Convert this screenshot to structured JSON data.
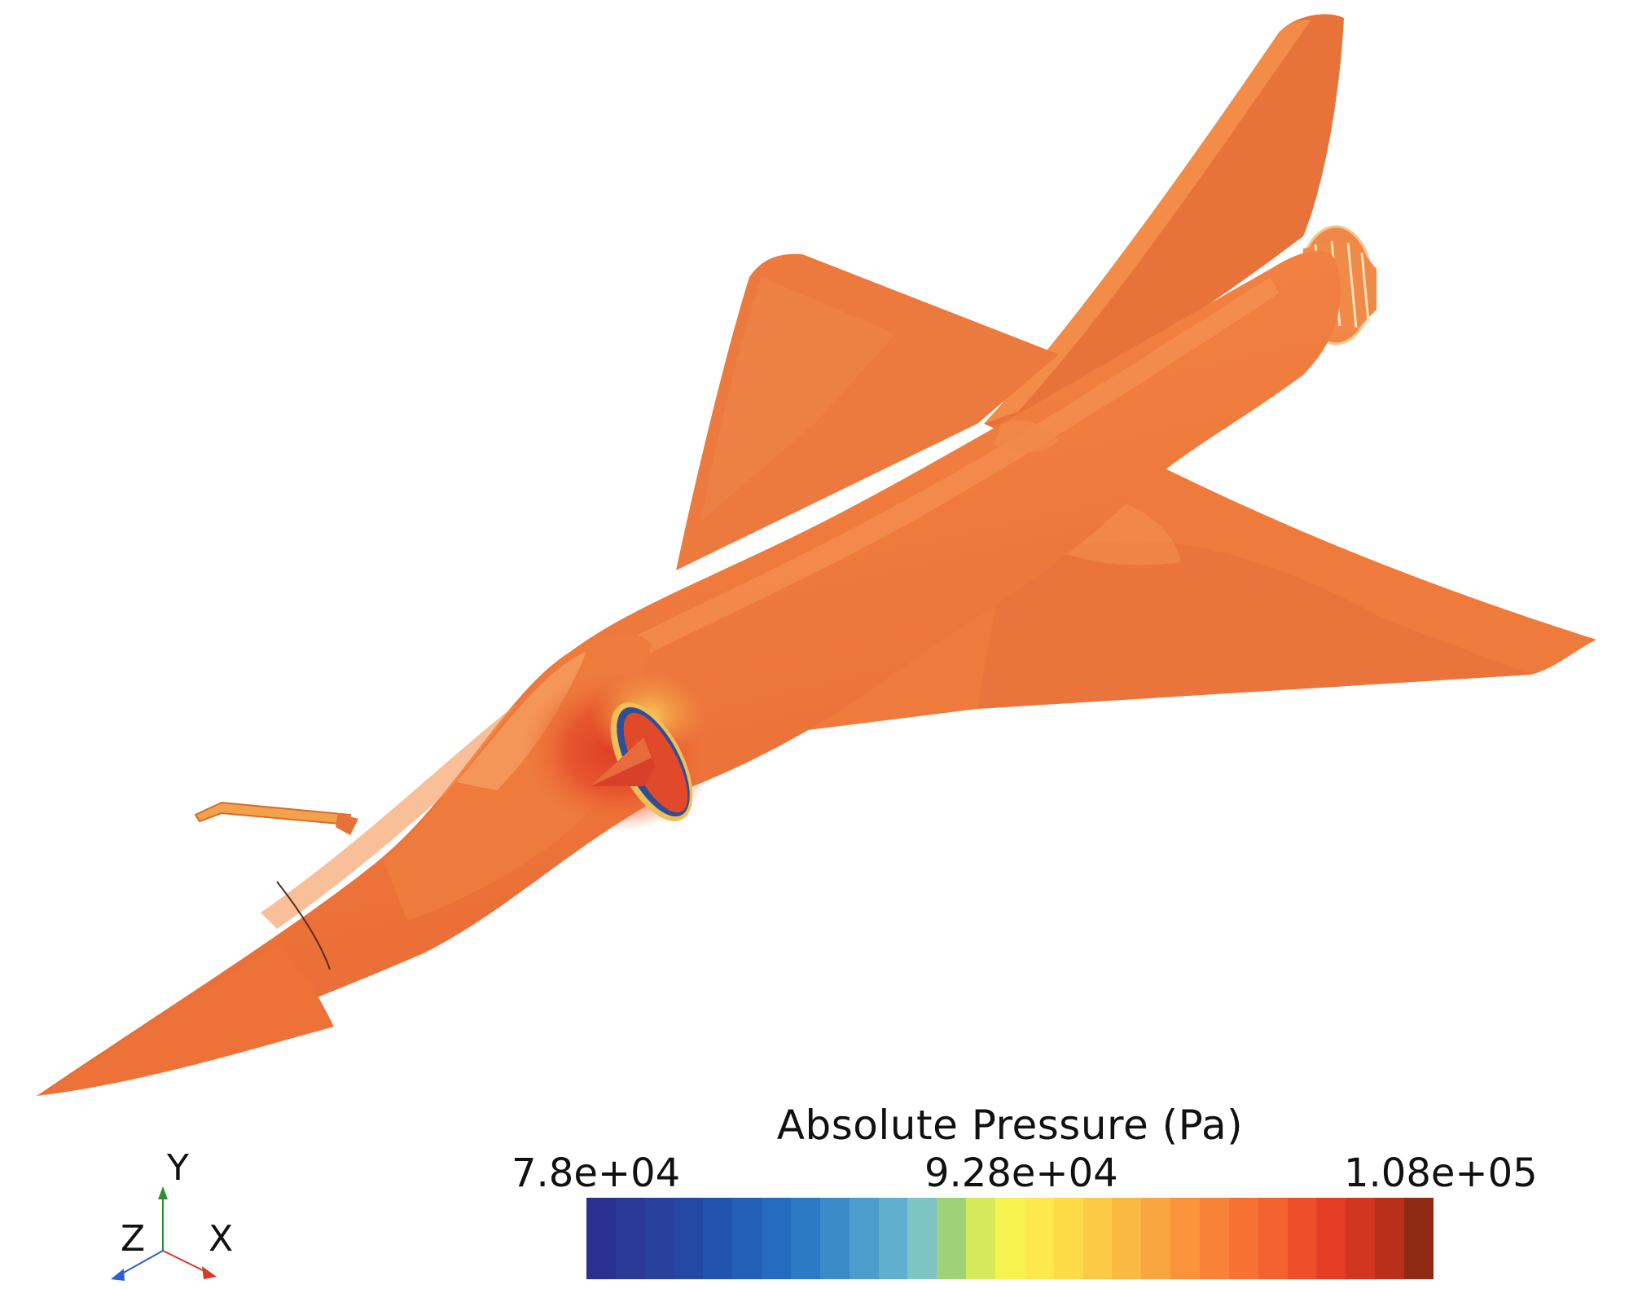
{
  "legend": {
    "title": "Absolute Pressure (Pa)",
    "min_label": "7.8e+04",
    "mid_label": "9.28e+04",
    "max_label": "1.08e+05",
    "colors": [
      "#2b2f8f",
      "#2a3896",
      "#28419d",
      "#2449a4",
      "#2154ad",
      "#2160b6",
      "#236cbe",
      "#2c79c4",
      "#3b8bc8",
      "#4c9dcb",
      "#5eb0ce",
      "#7fc4c4",
      "#9fd17a",
      "#d5ea5a",
      "#f8f34e",
      "#fde94b",
      "#fdda47",
      "#fccb45",
      "#fbb843",
      "#faa640",
      "#f9933c",
      "#f88238",
      "#f57234",
      "#f2612e",
      "#ee4f29",
      "#e43f24",
      "#d1361f",
      "#b9301a",
      "#8f2a14"
    ]
  },
  "triad": {
    "y_label": "Y",
    "x_label": "X",
    "z_label": "Z",
    "colors": {
      "x": "#d63a2a",
      "y": "#2f8f2f",
      "z": "#2a5fd6"
    }
  },
  "model": {
    "body_color": "#ee7a3c",
    "shade_color": "#e8693a",
    "highlight_color": "#f59a55",
    "hot_color": "#e0452a",
    "yellow_color": "#f4cc56"
  }
}
